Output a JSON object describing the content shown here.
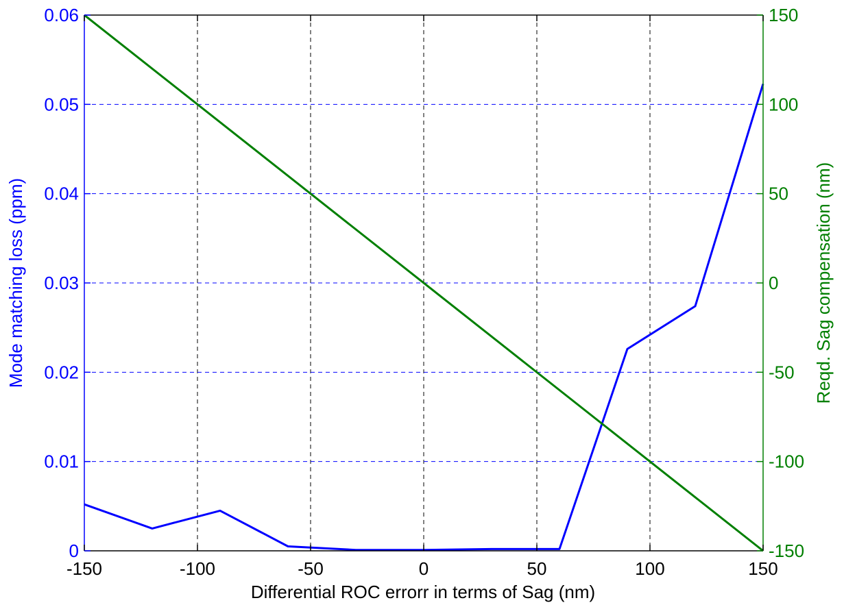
{
  "colors": {
    "left_axis": "#0000FF",
    "right_axis": "#007F00",
    "x_axis": "#000000",
    "x_grid": "#000000",
    "y_grid": "#0000FF"
  },
  "chart_data": {
    "type": "line",
    "title": "",
    "xlabel": "Differential ROC errorr in terms of Sag (nm)",
    "ylabel_left": "Mode matching loss (ppm)",
    "ylabel_right": "Reqd. Sag compensation (nm)",
    "xlim": [
      -150,
      150
    ],
    "ylim_left": [
      0,
      0.06
    ],
    "ylim_right": [
      -150,
      150
    ],
    "x_ticks": [
      -150,
      -100,
      -50,
      0,
      50,
      100,
      150
    ],
    "y_ticks_left": [
      "0",
      "0.01",
      "0.02",
      "0.03",
      "0.04",
      "0.05",
      "0.06"
    ],
    "y_ticks_right": [
      "-150",
      "-100",
      "-50",
      "0",
      "50",
      "100",
      "150"
    ],
    "grid": true,
    "legend": false,
    "series": [
      {
        "axis": "left",
        "color": "#0000FF",
        "x": [
          -150,
          -120,
          -90,
          -60,
          -30,
          0,
          30,
          60,
          90,
          120,
          150
        ],
        "values": [
          0.0052,
          0.0025,
          0.0045,
          0.0005,
          0.0001,
          0.0001,
          0.0002,
          0.0002,
          0.0226,
          0.0274,
          0.0523
        ]
      },
      {
        "axis": "right",
        "color": "#007F00",
        "x": [
          -150,
          150
        ],
        "values": [
          150,
          -150
        ]
      }
    ]
  }
}
